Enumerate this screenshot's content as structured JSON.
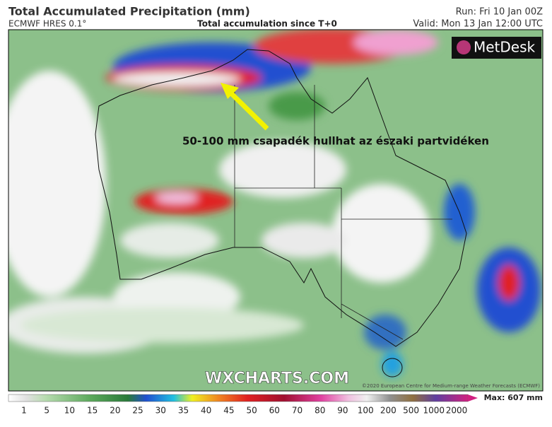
{
  "header": {
    "title": "Total Accumulated Precipitation (mm)",
    "model": "ECMWF HRES 0.1°",
    "subtitle": "Total accumulation since T+0",
    "run": "Run: Fri 10 Jan 00Z",
    "valid": "Valid: Mon 13 Jan 12:00 UTC"
  },
  "map": {
    "annotation": "50-100 mm csapadék hullhat az északi partvidéken",
    "logo": "MetDesk",
    "watermark": "WXCHARTS.COM",
    "copyright": "©2020 European Centre for Medium-range Weather Forecasts (ECMWF)"
  },
  "legend": {
    "labels": [
      1,
      5,
      10,
      15,
      20,
      25,
      30,
      35,
      40,
      45,
      50,
      60,
      70,
      80,
      90,
      100,
      200,
      500,
      1000,
      2000
    ],
    "max": "Max: 607 mm"
  }
}
